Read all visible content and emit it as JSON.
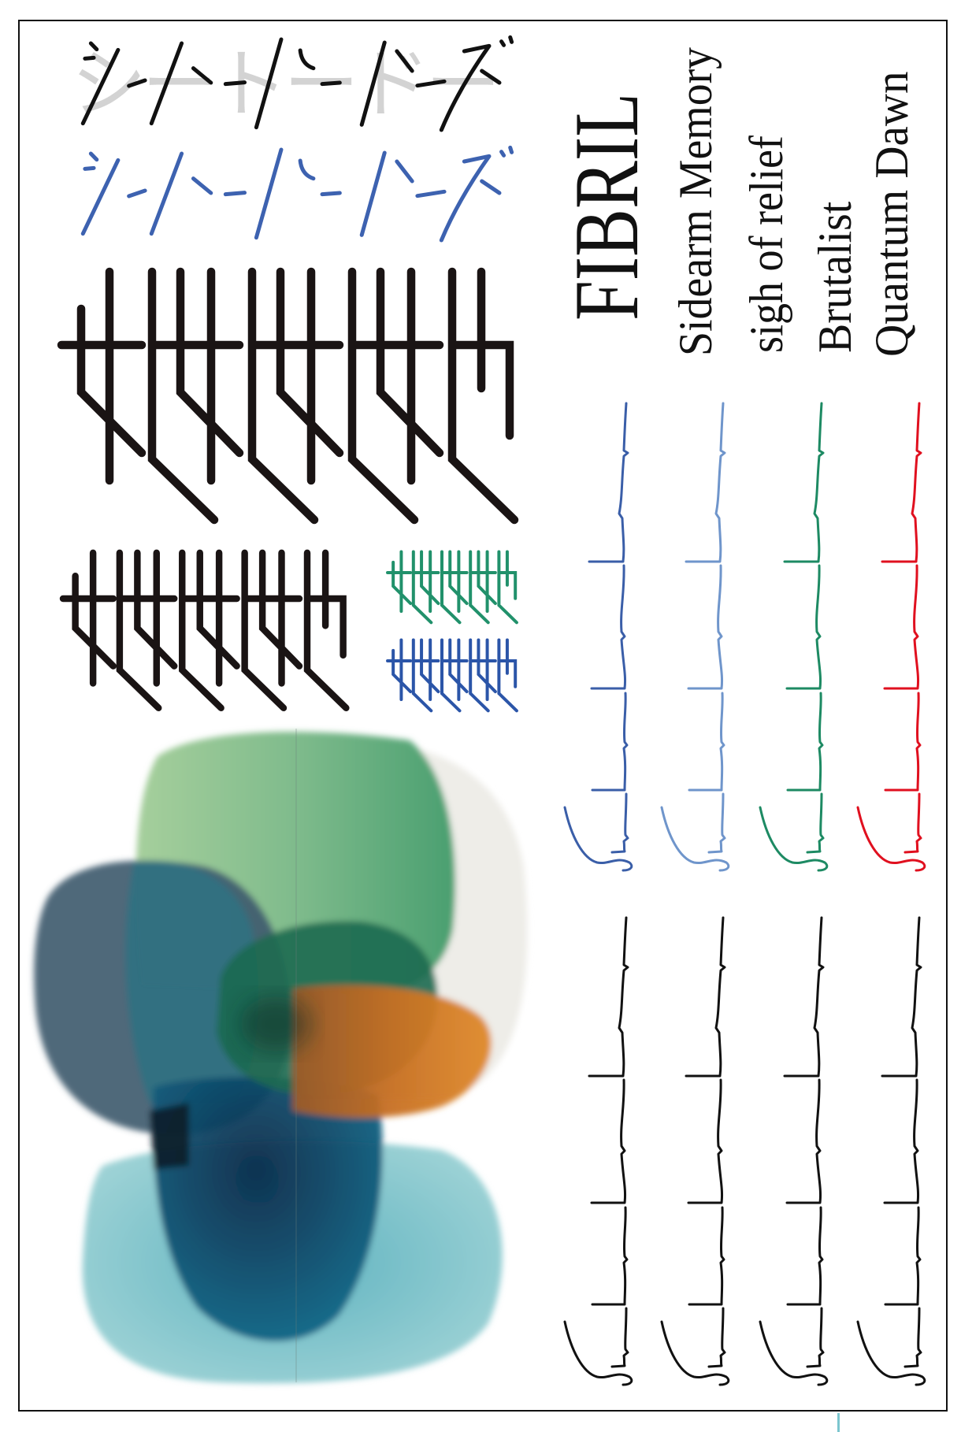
{
  "poster": {
    "title": "FIBRIL",
    "tracks": [
      {
        "label": "Sidearm Memory",
        "color": "#3a5ea8"
      },
      {
        "label": "sigh of relief",
        "color": "#6f95cb"
      },
      {
        "label": "Brutalist",
        "color": "#1d8a63"
      },
      {
        "label": "Quantum Dawn",
        "color": "#e0101f"
      }
    ],
    "artwork_lettering": {
      "katakana": "シートードートーズ",
      "katakana_colors": [
        "#111111",
        "#3d62b0"
      ],
      "glyph_row_colors": [
        "#1a1414",
        "#1a1414",
        "#21916b",
        "#2b55a8"
      ]
    },
    "signature_ink": "#111111",
    "accent_line_color": "#7cc6cf"
  }
}
